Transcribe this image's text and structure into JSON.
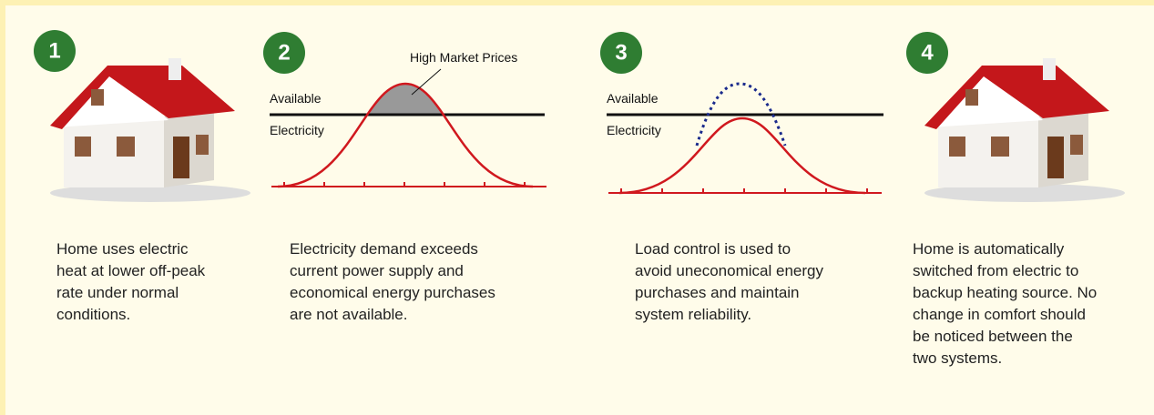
{
  "steps": [
    {
      "number": "1",
      "lines": [
        "Home uses electric",
        "heat at lower off-peak",
        "rate under normal",
        "conditions."
      ]
    },
    {
      "number": "2",
      "lines": [
        "Electricity demand exceeds",
        "current power supply and",
        "economical energy purchases",
        "are not available."
      ],
      "graph": {
        "annotation": "High Market Prices",
        "line_label": [
          "Available",
          "Electricity"
        ]
      }
    },
    {
      "number": "3",
      "lines": [
        "Load control is used to",
        "avoid uneconomical energy",
        "purchases and maintain",
        "system reliability."
      ],
      "graph": {
        "line_label": [
          "Available",
          "Electricity"
        ]
      }
    },
    {
      "number": "4",
      "lines": [
        "Home is automatically",
        "switched from electric to",
        "backup heating source. No",
        "change in comfort should",
        "be noticed between the",
        "two systems."
      ]
    }
  ]
}
